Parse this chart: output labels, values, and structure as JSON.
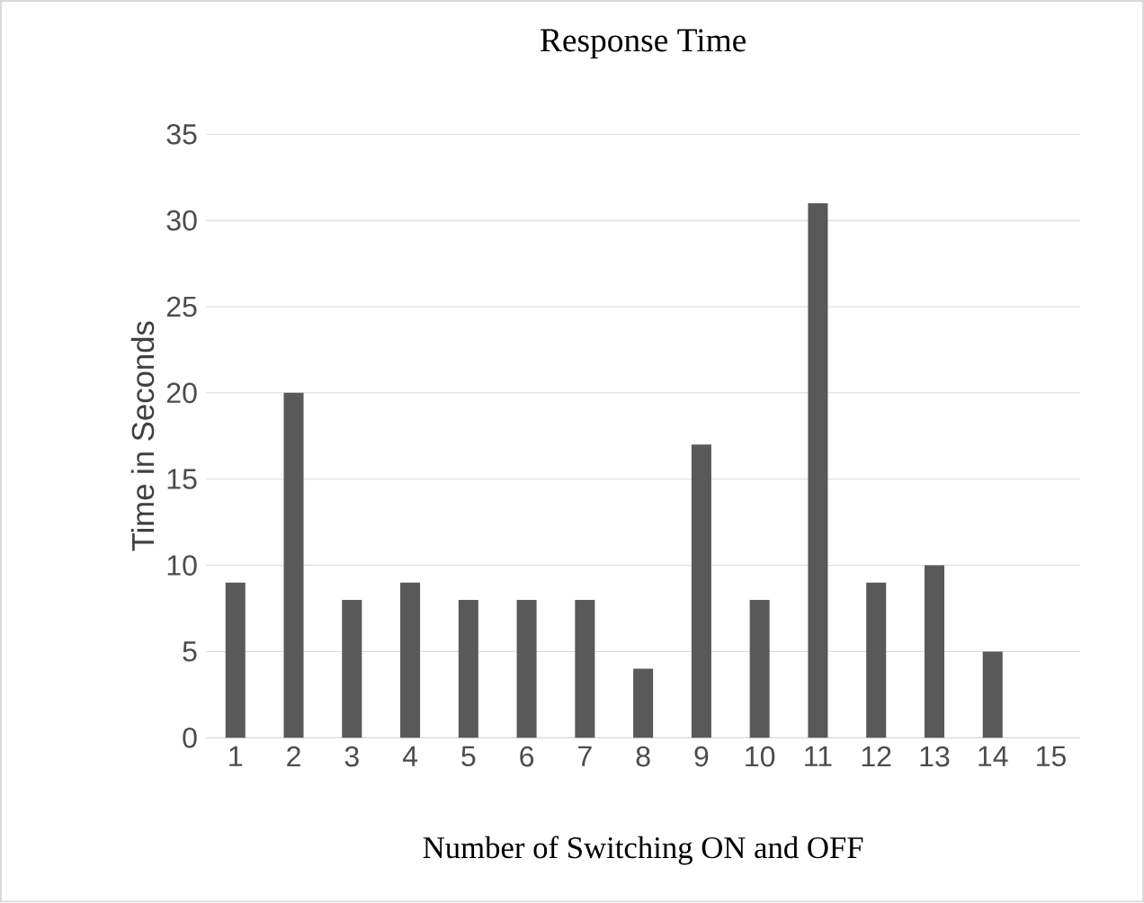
{
  "chart_data": {
    "type": "bar",
    "title": "Response Time",
    "xlabel": "Number of Switching ON and OFF",
    "ylabel": "Time in Seconds",
    "categories": [
      "1",
      "2",
      "3",
      "4",
      "5",
      "6",
      "7",
      "8",
      "9",
      "10",
      "11",
      "12",
      "13",
      "14",
      "15"
    ],
    "values": [
      9,
      20,
      8,
      9,
      8,
      8,
      8,
      4,
      17,
      8,
      31,
      9,
      10,
      5,
      null
    ],
    "color": "#595959",
    "ylim": [
      0,
      35
    ],
    "yticks": [
      0,
      5,
      10,
      15,
      20,
      25,
      30,
      35
    ],
    "grid": "y"
  }
}
